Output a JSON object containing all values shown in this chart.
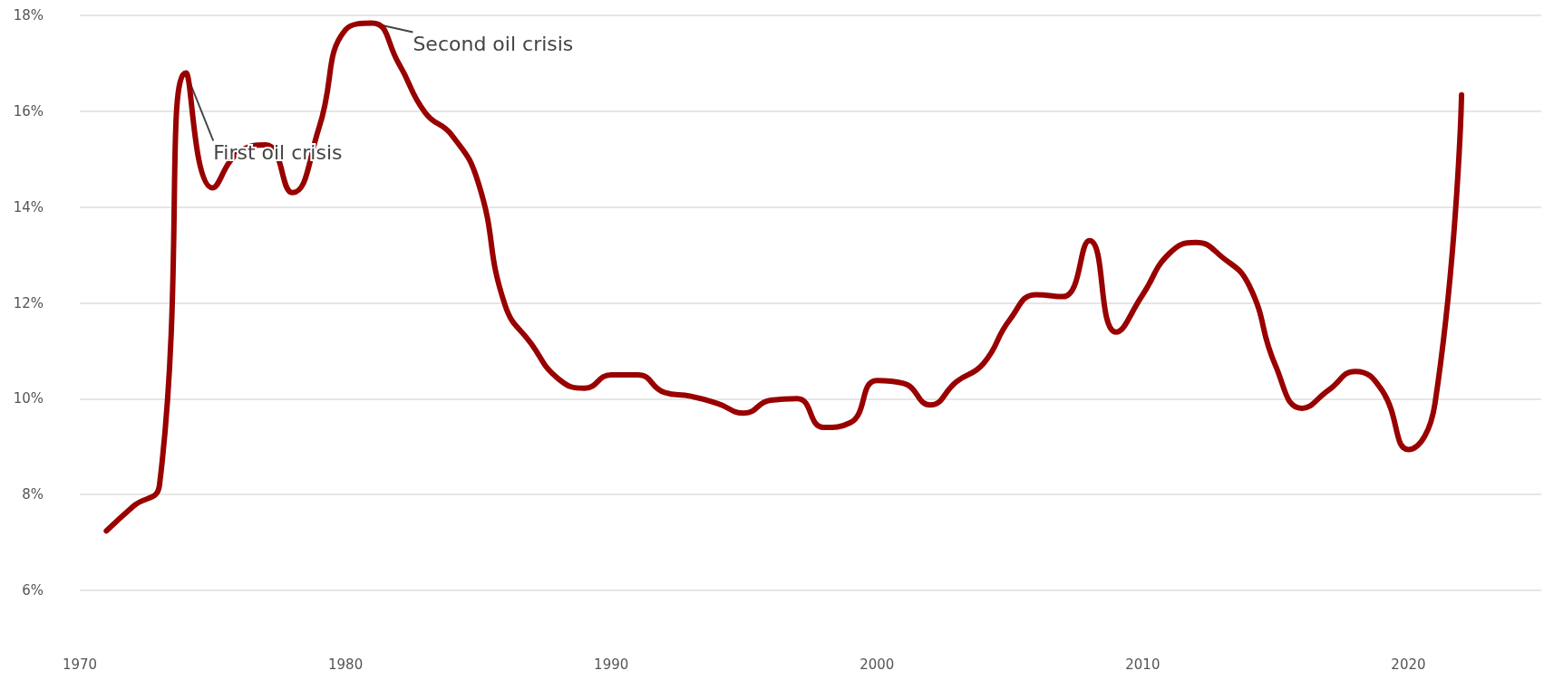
{
  "chart_data": {
    "type": "line",
    "x": [
      1971,
      1972,
      1973,
      1974,
      1975,
      1976,
      1977,
      1978,
      1979,
      1980,
      1981,
      1982,
      1983,
      1984,
      1985,
      1986,
      1987,
      1988,
      1989,
      1990,
      1991,
      1992,
      1993,
      1994,
      1995,
      1996,
      1997,
      1998,
      1999,
      2000,
      2001,
      2002,
      2003,
      2004,
      2005,
      2006,
      2007,
      2008,
      2009,
      2010,
      2011,
      2012,
      2013,
      2014,
      2015,
      2016,
      2017,
      2018,
      2019,
      2020,
      2021,
      2022
    ],
    "series": [
      {
        "color": "#990000",
        "values": [
          7.24,
          7.75,
          8.2,
          16.8,
          14.4,
          15.15,
          15.3,
          14.3,
          15.65,
          17.7,
          17.84,
          17.0,
          15.97,
          15.5,
          14.5,
          11.96,
          11.14,
          10.42,
          10.22,
          10.5,
          10.5,
          10.13,
          10.05,
          9.9,
          9.7,
          9.97,
          10.0,
          9.4,
          9.5,
          10.38,
          10.32,
          9.87,
          10.36,
          10.73,
          11.65,
          12.17,
          12.13,
          13.3,
          11.39,
          12.17,
          13.03,
          13.26,
          12.95,
          12.37,
          10.69,
          9.8,
          10.18,
          10.57,
          10.18,
          8.94,
          9.9,
          16.34
        ]
      }
    ],
    "xlim": [
      1970,
      2025
    ],
    "xticks": [
      1970,
      1980,
      1990,
      2000,
      2010,
      2020
    ],
    "ylim": [
      6,
      18
    ],
    "yticks": [
      {
        "value": 6,
        "label": "6%"
      },
      {
        "value": 8,
        "label": "8%"
      },
      {
        "value": 10,
        "label": "10%"
      },
      {
        "value": 12,
        "label": "12%"
      },
      {
        "value": 14,
        "label": "14%"
      },
      {
        "value": 16,
        "label": "16%"
      },
      {
        "value": 18,
        "label": "18%"
      }
    ],
    "annotations": [
      {
        "text": "First oil crisis",
        "x": 1974,
        "y": 16.8
      },
      {
        "text": "Second oil crisis",
        "x": 1981,
        "y": 17.84
      }
    ],
    "grid": "y",
    "marker": "none",
    "line_style": "solid"
  }
}
